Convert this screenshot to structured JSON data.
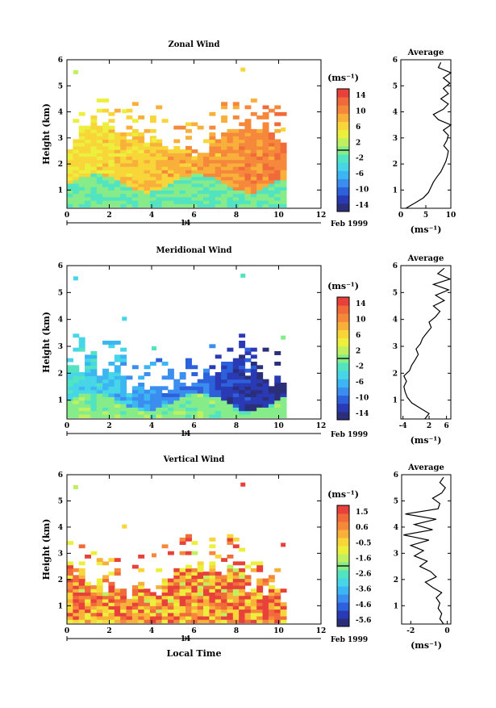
{
  "chart_data": [
    {
      "type": "heatmap",
      "title": "Zonal Wind",
      "xlabel": "",
      "ylabel": "Height (km)",
      "xlim": [
        0,
        12
      ],
      "ylim": [
        0.3,
        6
      ],
      "x_ticks": [
        "0",
        "2",
        "4",
        "6",
        "8",
        "10",
        "12"
      ],
      "y_ticks": [
        "1",
        "2",
        "3",
        "4",
        "5",
        "6"
      ],
      "date_axis": {
        "day_label": "14",
        "month_label": "Feb 1999"
      },
      "colorbar": {
        "unit": "(ms⁻¹)",
        "ticks": [
          "14",
          "10",
          "6",
          "2",
          "-2",
          "-6",
          "-10",
          "-14"
        ],
        "range": [
          -16,
          16
        ]
      },
      "field": {
        "base_value": 5,
        "gradient": 0.6,
        "low_band_value": -1,
        "low_band_top": 1.2,
        "data_top": 2.9
      },
      "average": {
        "title": "Average",
        "xlabel": "(ms⁻¹)",
        "xlim": [
          0,
          10
        ],
        "x_ticks": [
          "0",
          "5",
          "10"
        ],
        "y_ticks": [
          "1",
          "2",
          "3",
          "4",
          "5",
          "6"
        ],
        "heights": [
          0.3,
          0.5,
          0.7,
          0.9,
          1.1,
          1.3,
          1.5,
          1.7,
          1.9,
          2.1,
          2.3,
          2.5,
          2.7,
          2.9,
          3.1,
          3.3,
          3.5,
          3.7,
          3.9,
          4.1,
          4.3,
          4.5,
          4.7,
          4.9,
          5.1,
          5.3,
          5.5,
          5.7,
          5.9
        ],
        "values": [
          1.0,
          2.8,
          4.5,
          5.5,
          6.0,
          6.5,
          7.2,
          8.0,
          8.5,
          9.0,
          9.3,
          9.5,
          8.6,
          9.2,
          9.5,
          8.5,
          10.0,
          7.5,
          6.5,
          8.5,
          9.5,
          8.0,
          9.5,
          8.5,
          9.8,
          8.5,
          10.0,
          7.5,
          8.0
        ]
      }
    },
    {
      "type": "heatmap",
      "title": "Meridional Wind",
      "xlabel": "",
      "ylabel": "Height (km)",
      "xlim": [
        0,
        12
      ],
      "ylim": [
        0.3,
        6
      ],
      "x_ticks": [
        "0",
        "2",
        "4",
        "6",
        "8",
        "10",
        "12"
      ],
      "y_ticks": [
        "1",
        "2",
        "3",
        "4",
        "5",
        "6"
      ],
      "date_axis": {
        "day_label": "14",
        "month_label": "Feb 1999"
      },
      "colorbar": {
        "unit": "(ms⁻¹)",
        "ticks": [
          "14",
          "10",
          "6",
          "2",
          "-2",
          "-6",
          "-10",
          "-14"
        ],
        "range": [
          -16,
          16
        ]
      },
      "field": {
        "base_value": -3,
        "gradient": -1.2,
        "low_band_value": 0,
        "low_band_top": 0.9,
        "data_top": 1.8
      },
      "average": {
        "title": "Average",
        "xlabel": "(ms⁻¹)",
        "xlim": [
          -4.5,
          7
        ],
        "x_ticks": [
          "-4",
          "2",
          "6"
        ],
        "y_ticks": [
          "1",
          "2",
          "3",
          "4",
          "5",
          "6"
        ],
        "heights": [
          0.3,
          0.5,
          0.7,
          0.9,
          1.1,
          1.3,
          1.5,
          1.7,
          1.9,
          2.1,
          2.3,
          2.5,
          2.7,
          2.9,
          3.1,
          3.3,
          3.5,
          3.7,
          3.9,
          4.1,
          4.3,
          4.5,
          4.7,
          4.9,
          5.1,
          5.3,
          5.5,
          5.7,
          5.9
        ],
        "values": [
          1.0,
          2.0,
          0.0,
          -2.0,
          -3.0,
          -3.5,
          -3.8,
          -3.2,
          -3.8,
          -2.5,
          -2.0,
          -1.2,
          -0.5,
          -1.0,
          0.0,
          0.5,
          1.5,
          2.5,
          2.0,
          3.5,
          4.5,
          3.0,
          5.5,
          3.5,
          6.5,
          3.0,
          6.8,
          4.0,
          5.5
        ]
      }
    },
    {
      "type": "heatmap",
      "title": "Vertical Wind",
      "xlabel": "Local Time",
      "ylabel": "Height (km)",
      "xlim": [
        0,
        12
      ],
      "ylim": [
        0.3,
        6
      ],
      "x_ticks": [
        "0",
        "2",
        "4",
        "6",
        "8",
        "10",
        "12"
      ],
      "y_ticks": [
        "1",
        "2",
        "3",
        "4",
        "5",
        "6"
      ],
      "date_axis": {
        "day_label": "14",
        "month_label": "Feb 1999"
      },
      "colorbar": {
        "unit": "(ms⁻¹)",
        "ticks": [
          "1.5",
          "0.6",
          "-0.5",
          "-1.6",
          "-2.6",
          "-3.6",
          "-4.6",
          "-5.6"
        ],
        "range": [
          -6,
          2
        ]
      },
      "field": {
        "base_value": 0.7,
        "gradient": 0.0,
        "low_band_value": 0.3,
        "low_band_top": 0.6,
        "data_top": 1.9
      },
      "average": {
        "title": "Average",
        "xlabel": "(ms⁻¹)",
        "xlim": [
          -2.5,
          0.2
        ],
        "x_ticks": [
          "-2",
          "0"
        ],
        "y_ticks": [
          "1",
          "2",
          "3",
          "4",
          "5",
          "6"
        ],
        "heights": [
          0.3,
          0.5,
          0.7,
          0.9,
          1.1,
          1.3,
          1.5,
          1.7,
          1.9,
          2.1,
          2.3,
          2.5,
          2.7,
          2.9,
          3.1,
          3.3,
          3.5,
          3.7,
          3.9,
          4.1,
          4.3,
          4.5,
          4.7,
          4.9,
          5.1,
          5.3,
          5.5,
          5.7,
          5.9
        ],
        "values": [
          -0.2,
          -0.4,
          -0.3,
          -0.5,
          -0.4,
          -0.6,
          -0.3,
          -0.8,
          -1.2,
          -0.6,
          -0.9,
          -1.5,
          -1.1,
          -1.8,
          -1.3,
          -2.0,
          -1.0,
          -2.4,
          -0.8,
          -1.8,
          -0.6,
          -2.3,
          -0.5,
          -0.4,
          -0.8,
          -0.3,
          -0.1,
          -0.4,
          -0.2
        ]
      }
    }
  ]
}
